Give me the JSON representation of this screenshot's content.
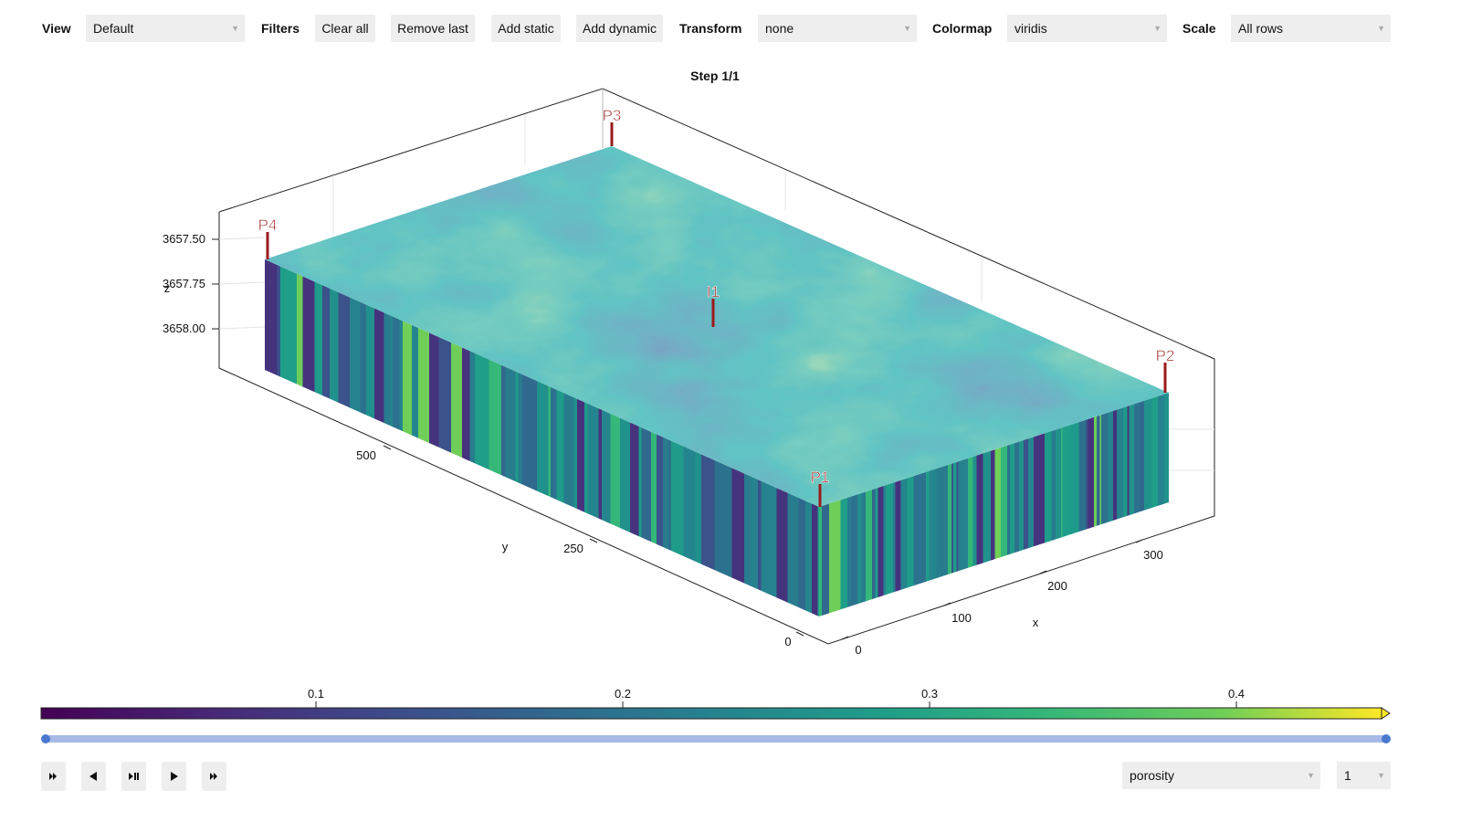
{
  "toolbar": {
    "view_label": "View",
    "view_value": "Default",
    "filters_label": "Filters",
    "buttons": [
      "Clear all",
      "Remove last",
      "Add static",
      "Add dynamic"
    ],
    "transform_label": "Transform",
    "transform_value": "none",
    "colormap_label": "Colormap",
    "colormap_value": "viridis",
    "scale_label": "Scale",
    "scale_value": "All rows"
  },
  "plot": {
    "title": "Step 1/1",
    "z_axis": {
      "label": "z",
      "ticks": [
        "3657.50",
        "3657.75",
        "3658.00"
      ]
    },
    "y_axis": {
      "label": "y",
      "ticks": [
        "500",
        "250",
        "0"
      ]
    },
    "x_axis": {
      "label": "x",
      "ticks": [
        "0",
        "100",
        "200",
        "300"
      ]
    },
    "wells": [
      "P3",
      "P4",
      "I1",
      "P2",
      "P1"
    ]
  },
  "colorbar": {
    "ticks": [
      "0.1",
      "0.2",
      "0.3",
      "0.4"
    ]
  },
  "controls": {
    "variable": "porosity",
    "step": "1"
  }
}
